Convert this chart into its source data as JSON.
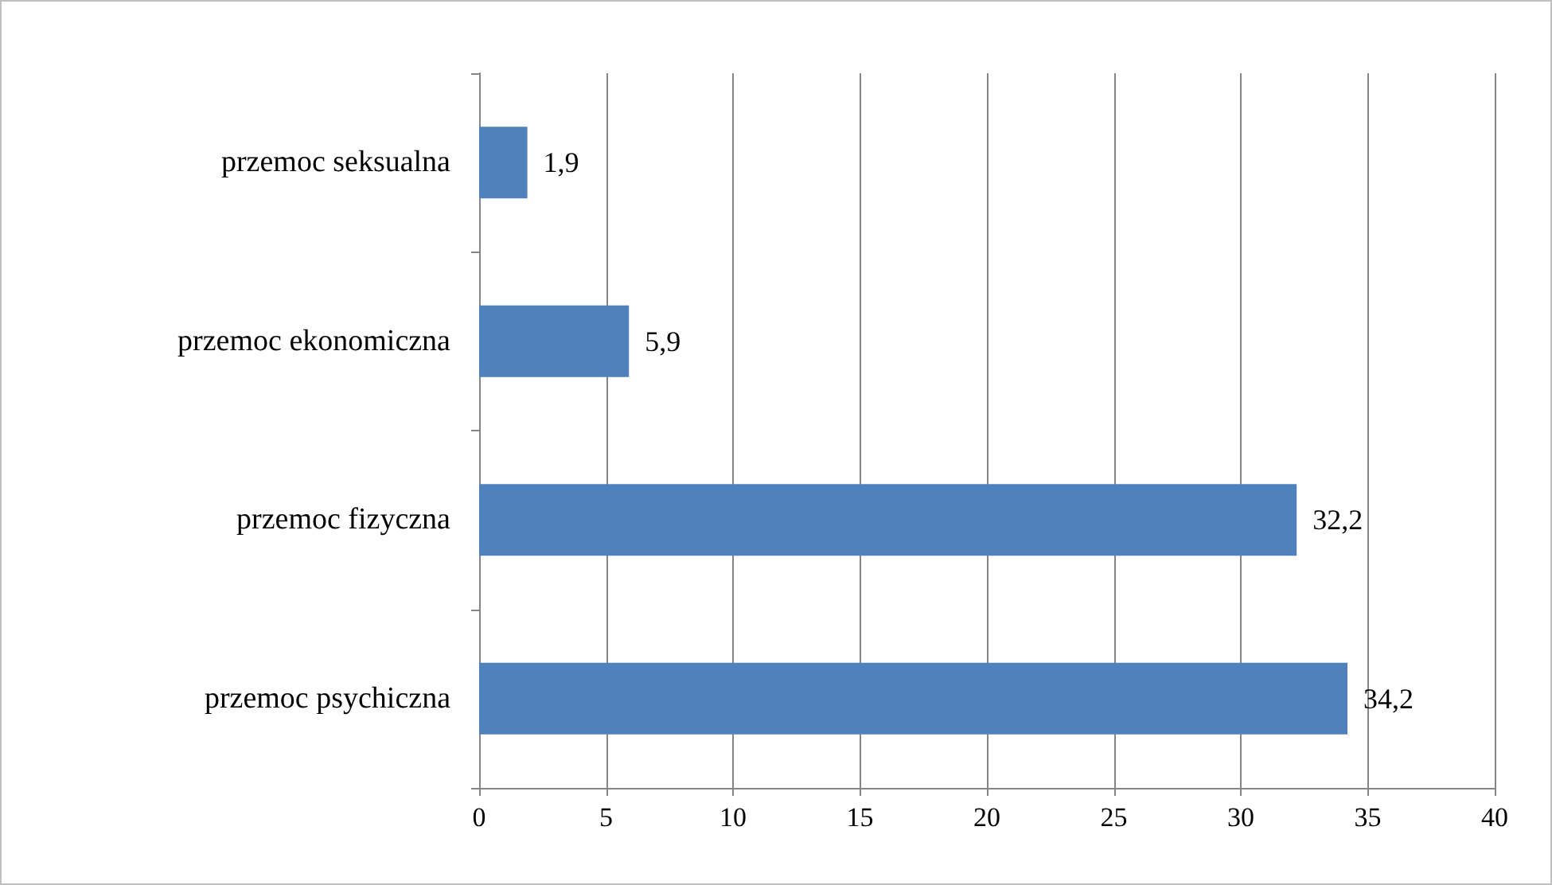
{
  "chart_data": {
    "type": "bar",
    "orientation": "horizontal",
    "categories": [
      "przemoc seksualna",
      "przemoc ekonomiczna",
      "przemoc fizyczna",
      "przemoc psychiczna"
    ],
    "values": [
      1.9,
      5.9,
      32.2,
      34.2
    ],
    "value_labels": [
      "1,9",
      "5,9",
      "32,2",
      "34,2"
    ],
    "color": "#4f81bd",
    "xlim": [
      0,
      40
    ],
    "xticks": [
      0,
      5,
      10,
      15,
      20,
      25,
      30,
      35,
      40
    ],
    "grid": "x"
  }
}
